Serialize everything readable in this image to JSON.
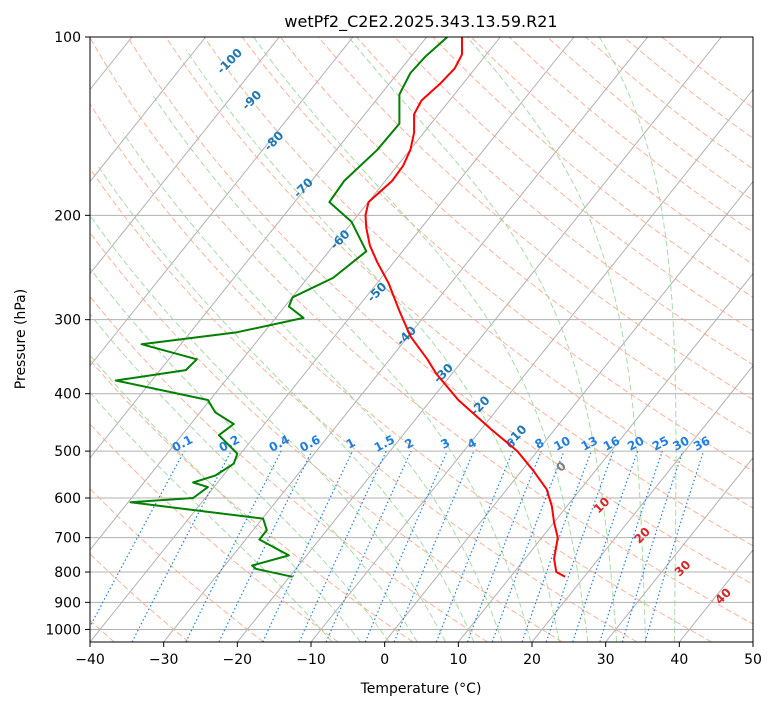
{
  "chart_data": {
    "type": "line",
    "title": "wetPf2_C2E2.2025.343.13.59.R21",
    "xlabel": "Temperature (°C)",
    "ylabel": "Pressure (hPa)",
    "xlim": [
      -40,
      50
    ],
    "ylim": [
      1050,
      100
    ],
    "y_scale": "log",
    "grid": true,
    "x_ticks": [
      -40,
      -30,
      -20,
      -10,
      0,
      10,
      20,
      30,
      40,
      50
    ],
    "y_ticks": [
      100,
      200,
      300,
      400,
      500,
      600,
      700,
      800,
      900,
      1000
    ],
    "series": [
      {
        "color": "#ff0000",
        "points": [
          [
            24.5,
            815
          ],
          [
            23.3,
            800
          ],
          [
            23.0,
            760
          ],
          [
            23.5,
            700
          ],
          [
            23.0,
            660
          ],
          [
            22.7,
            620
          ],
          [
            22.0,
            580
          ],
          [
            20.2,
            540
          ],
          [
            18.0,
            500
          ],
          [
            14.5,
            460
          ],
          [
            10.0,
            410
          ],
          [
            7.0,
            370
          ],
          [
            5.8,
            350
          ],
          [
            3.5,
            320
          ],
          [
            2.0,
            290
          ],
          [
            0.5,
            260
          ],
          [
            -1.0,
            240
          ],
          [
            -2.0,
            225
          ],
          [
            -2.5,
            210
          ],
          [
            -2.6,
            200
          ],
          [
            -2.2,
            190
          ],
          [
            1.0,
            175
          ],
          [
            2.5,
            165
          ],
          [
            3.5,
            155
          ],
          [
            4.0,
            145
          ],
          [
            4.0,
            135
          ],
          [
            5.0,
            128
          ],
          [
            7.5,
            120
          ],
          [
            9.5,
            113
          ],
          [
            10.5,
            107
          ],
          [
            10.5,
            100
          ]
        ]
      },
      {
        "color": "#008000",
        "points": [
          [
            -12.5,
            815
          ],
          [
            -17.5,
            790
          ],
          [
            -18.0,
            780
          ],
          [
            -13.0,
            750
          ],
          [
            -17.0,
            705
          ],
          [
            -16.0,
            680
          ],
          [
            -16.5,
            650
          ],
          [
            -34.5,
            610
          ],
          [
            -26.0,
            600
          ],
          [
            -24.0,
            575
          ],
          [
            -26.0,
            565
          ],
          [
            -23.0,
            550
          ],
          [
            -20.5,
            525
          ],
          [
            -20.0,
            505
          ],
          [
            -22.5,
            470
          ],
          [
            -20.5,
            450
          ],
          [
            -23.0,
            430
          ],
          [
            -24.0,
            410
          ],
          [
            -36.5,
            380
          ],
          [
            -27.0,
            365
          ],
          [
            -25.5,
            350
          ],
          [
            -33.0,
            330
          ],
          [
            -20.0,
            315
          ],
          [
            -11.0,
            298
          ],
          [
            -13.0,
            285
          ],
          [
            -12.5,
            275
          ],
          [
            -7.0,
            255
          ],
          [
            -2.5,
            230
          ],
          [
            -4.5,
            205
          ],
          [
            -7.5,
            190
          ],
          [
            -5.5,
            175
          ],
          [
            -1.0,
            155
          ],
          [
            2.0,
            140
          ],
          [
            2.0,
            125
          ],
          [
            3.5,
            115
          ],
          [
            5.5,
            108
          ],
          [
            8.5,
            100
          ]
        ]
      }
    ],
    "dry_adiabat_labels": [
      "-100",
      "-90",
      "-80",
      "-70",
      "-60",
      "-50",
      "-40",
      "-30",
      "-20",
      "-10",
      "0",
      "10",
      "20",
      "30",
      "40"
    ],
    "mixing_ratio_labels": [
      "0.1",
      "0.2",
      "0.4",
      "0.6",
      "1",
      "1.5",
      "2",
      "3",
      "4",
      "6",
      "8",
      "10",
      "13",
      "16",
      "20",
      "25",
      "30",
      "36"
    ],
    "colors": {
      "temperature": "#ff0000",
      "dewpoint": "#008000",
      "grid": "#b0b0b0",
      "isotherm": "#b0b0b0",
      "dry_adiabat": "#f7a68a",
      "moist_adiabat": "#9fd69f",
      "mixing_ratio": "#1f7fe0",
      "label_blue": "#1f77b4",
      "label_red": "#d62728",
      "label_gray": "#808080"
    }
  }
}
